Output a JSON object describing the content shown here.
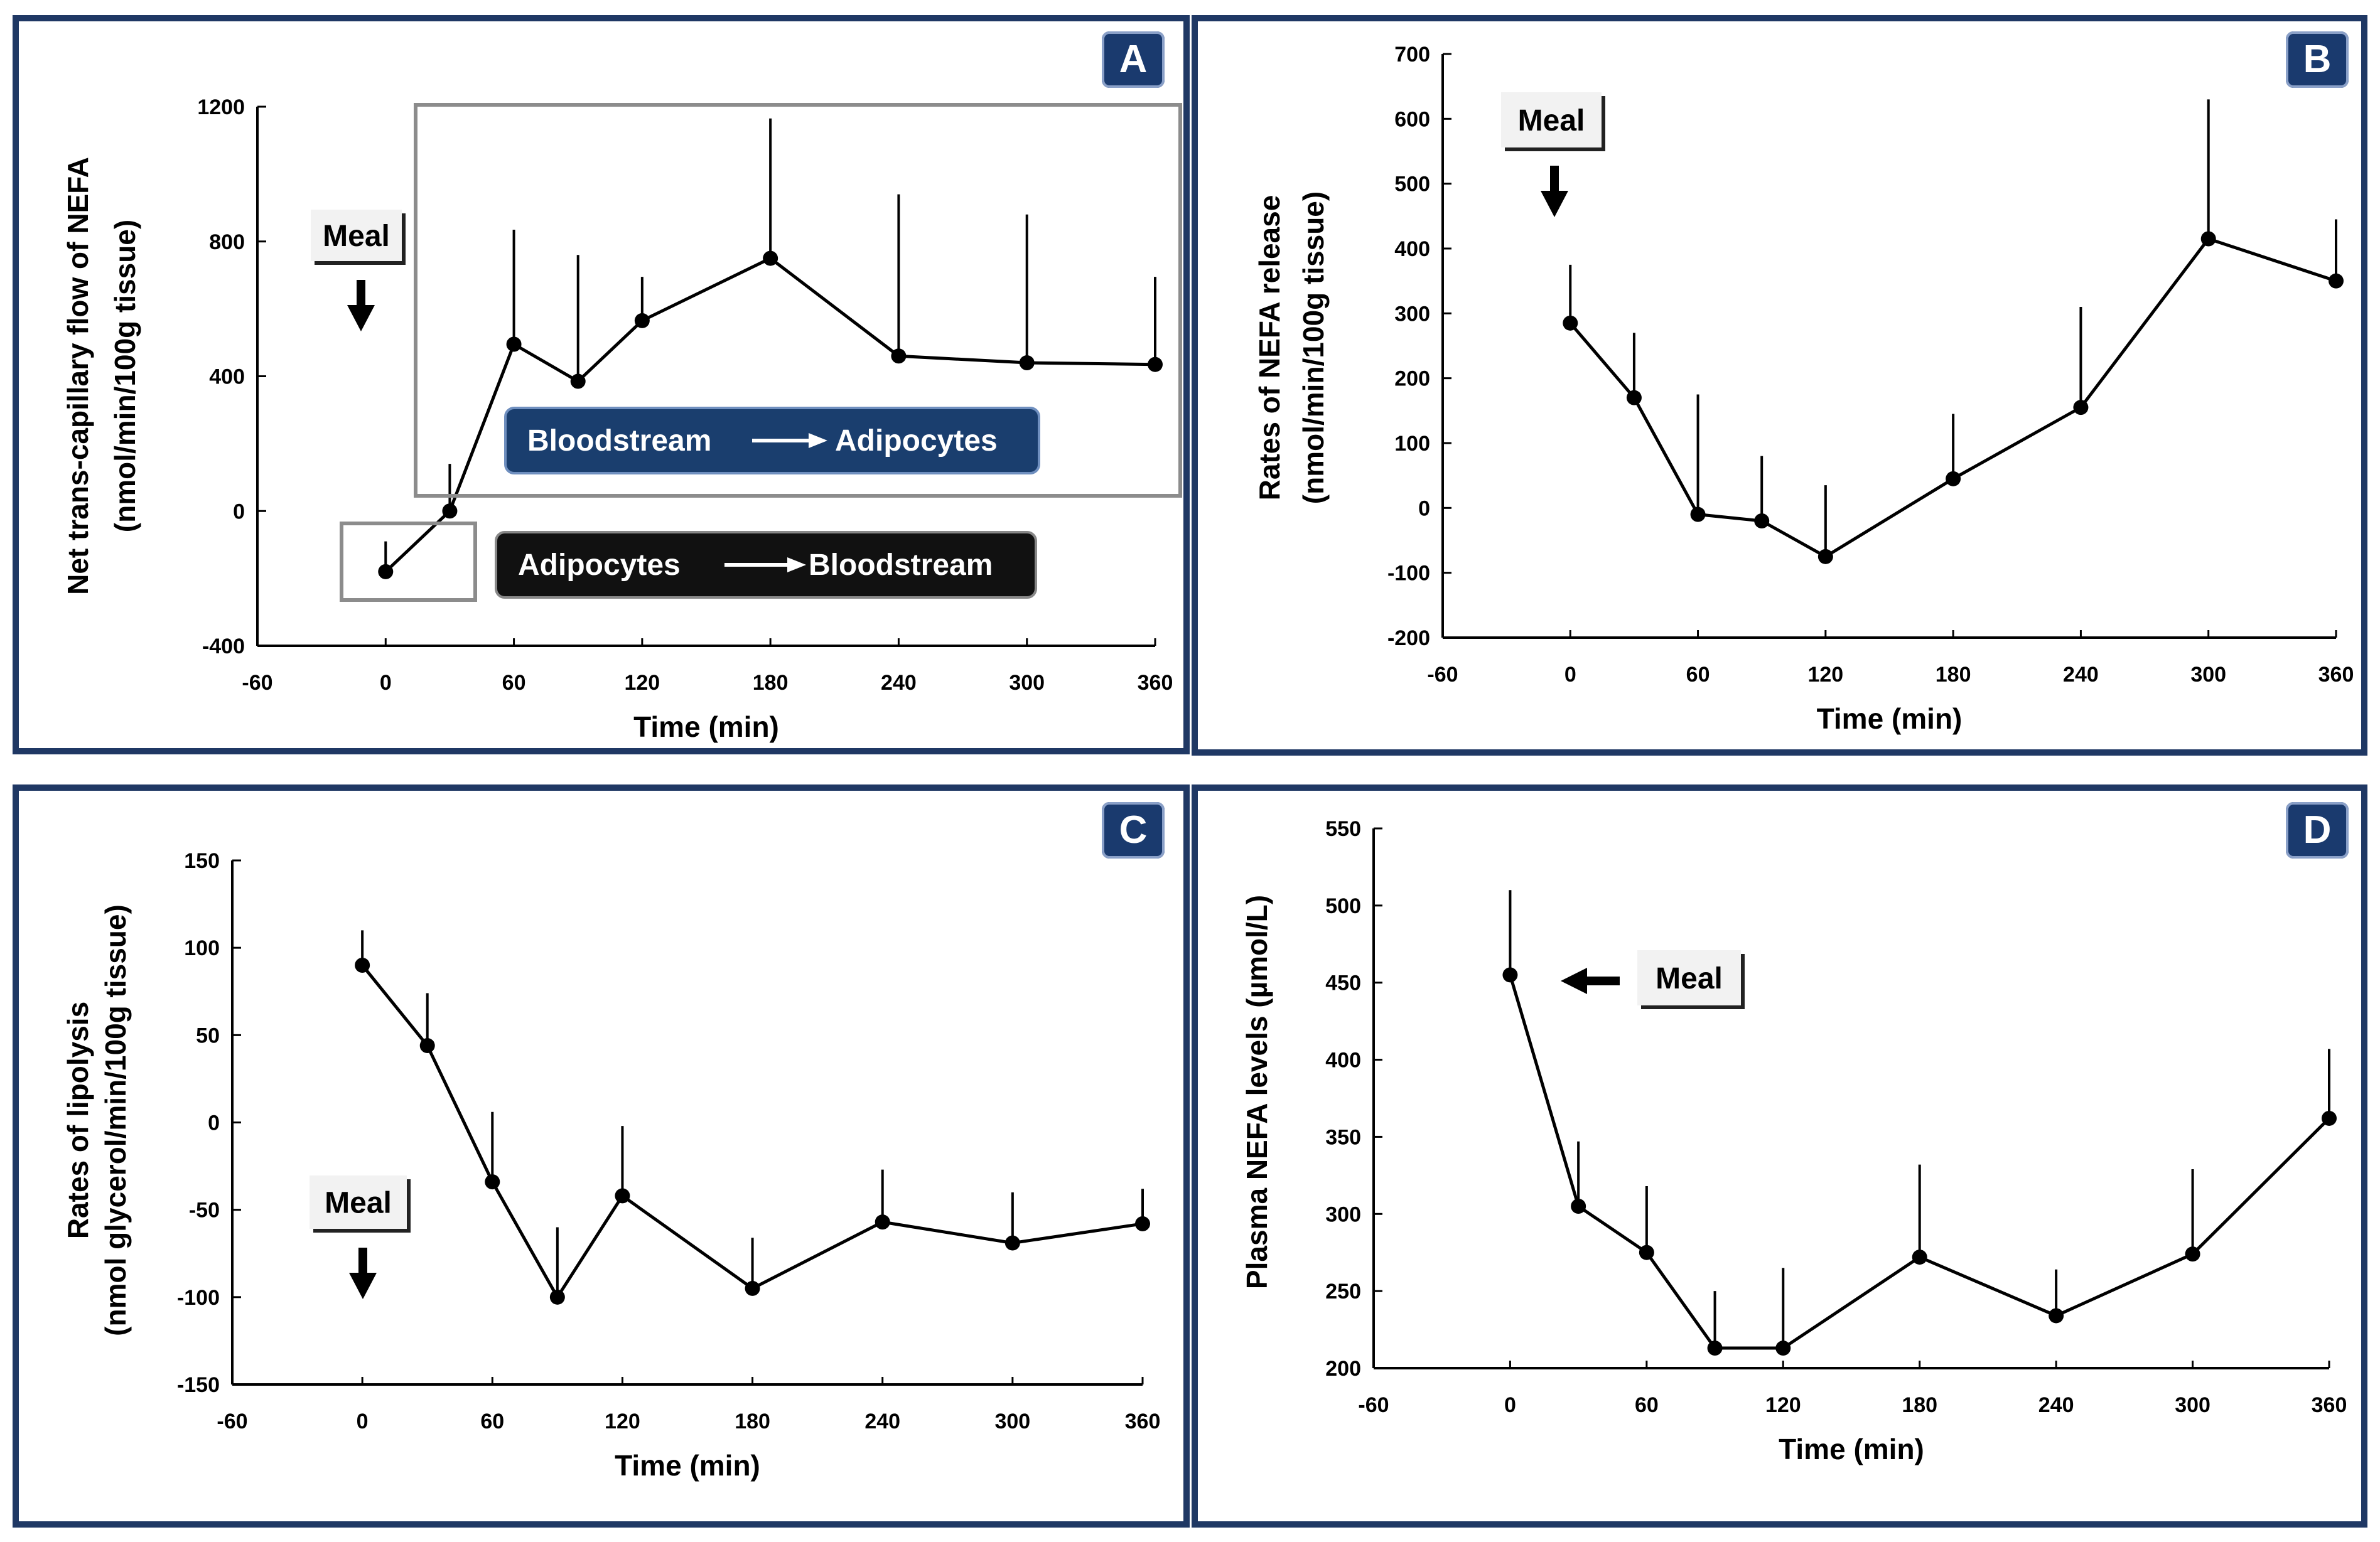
{
  "colors": {
    "frame": "#1f3864",
    "badge": "#1a3a6e",
    "line": "#000000",
    "flow_blue": "#1a3e6e",
    "flow_black": "#111111"
  },
  "chart_data": [
    {
      "id": "A",
      "type": "line",
      "panel_label": "A",
      "xlabel": "Time (min)",
      "ylabel": [
        "Net trans-capillary flow of NEFA",
        "(nmol/min/100g tissue)"
      ],
      "xlim": [
        -60,
        360
      ],
      "ylim": [
        -400,
        1200
      ],
      "xticks": [
        -60,
        0,
        60,
        120,
        180,
        240,
        300,
        360
      ],
      "yticks": [
        -400,
        0,
        400,
        800,
        1200
      ],
      "x": [
        0,
        30,
        60,
        90,
        120,
        180,
        240,
        300,
        360
      ],
      "values": [
        -180,
        0,
        495,
        385,
        565,
        750,
        460,
        440,
        435
      ],
      "error_upper": [
        -90,
        140,
        835,
        760,
        695,
        1165,
        940,
        880,
        695
      ],
      "annotations": {
        "meal": "Meal",
        "flow_into": {
          "from": "Bloodstream",
          "to": "Adipocytes"
        },
        "flow_out": {
          "from": "Adipocytes",
          "to": "Bloodstream"
        }
      }
    },
    {
      "id": "B",
      "type": "line",
      "panel_label": "B",
      "xlabel": "Time (min)",
      "ylabel": [
        "Rates of NEFA release",
        "(nmol/min/100g tissue)"
      ],
      "xlim": [
        -60,
        360
      ],
      "ylim": [
        -200,
        700
      ],
      "xticks": [
        -60,
        0,
        60,
        120,
        180,
        240,
        300,
        360
      ],
      "yticks": [
        -200,
        -100,
        0,
        100,
        200,
        300,
        400,
        500,
        600,
        700
      ],
      "x": [
        0,
        30,
        60,
        90,
        120,
        180,
        240,
        300,
        360
      ],
      "values": [
        285,
        170,
        -10,
        -20,
        -75,
        45,
        155,
        415,
        350
      ],
      "error_upper": [
        375,
        270,
        175,
        80,
        35,
        145,
        310,
        630,
        445
      ],
      "annotations": {
        "meal": "Meal"
      }
    },
    {
      "id": "C",
      "type": "line",
      "panel_label": "C",
      "xlabel": "Time (min)",
      "ylabel": [
        "Rates of lipolysis",
        "(nmol glycerol/min/100g tissue)"
      ],
      "xlim": [
        -60,
        360
      ],
      "ylim": [
        -150,
        150
      ],
      "xticks": [
        -60,
        0,
        60,
        120,
        180,
        240,
        300,
        360
      ],
      "yticks": [
        -150,
        -100,
        -50,
        0,
        50,
        100,
        150
      ],
      "x": [
        0,
        30,
        60,
        90,
        120,
        180,
        240,
        300,
        360
      ],
      "values": [
        90,
        44,
        -34,
        -100,
        -42,
        -95,
        -57,
        -69,
        -58
      ],
      "error_upper": [
        110,
        74,
        6,
        -60,
        -2,
        -66,
        -27,
        -40,
        -38
      ],
      "annotations": {
        "meal": "Meal"
      }
    },
    {
      "id": "D",
      "type": "line",
      "panel_label": "D",
      "xlabel": "Time (min)",
      "ylabel": [
        "Plasma NEFA levels (µmol/L)"
      ],
      "xlim": [
        -60,
        360
      ],
      "ylim": [
        200,
        550
      ],
      "xticks": [
        -60,
        0,
        60,
        120,
        180,
        240,
        300,
        360
      ],
      "yticks": [
        200,
        250,
        300,
        350,
        400,
        450,
        500,
        550
      ],
      "x": [
        0,
        30,
        60,
        90,
        120,
        180,
        240,
        300,
        360
      ],
      "values": [
        455,
        305,
        275,
        213,
        213,
        272,
        234,
        274,
        362
      ],
      "error_upper": [
        510,
        347,
        318,
        250,
        265,
        332,
        264,
        329,
        407
      ],
      "annotations": {
        "meal": "Meal"
      }
    }
  ]
}
